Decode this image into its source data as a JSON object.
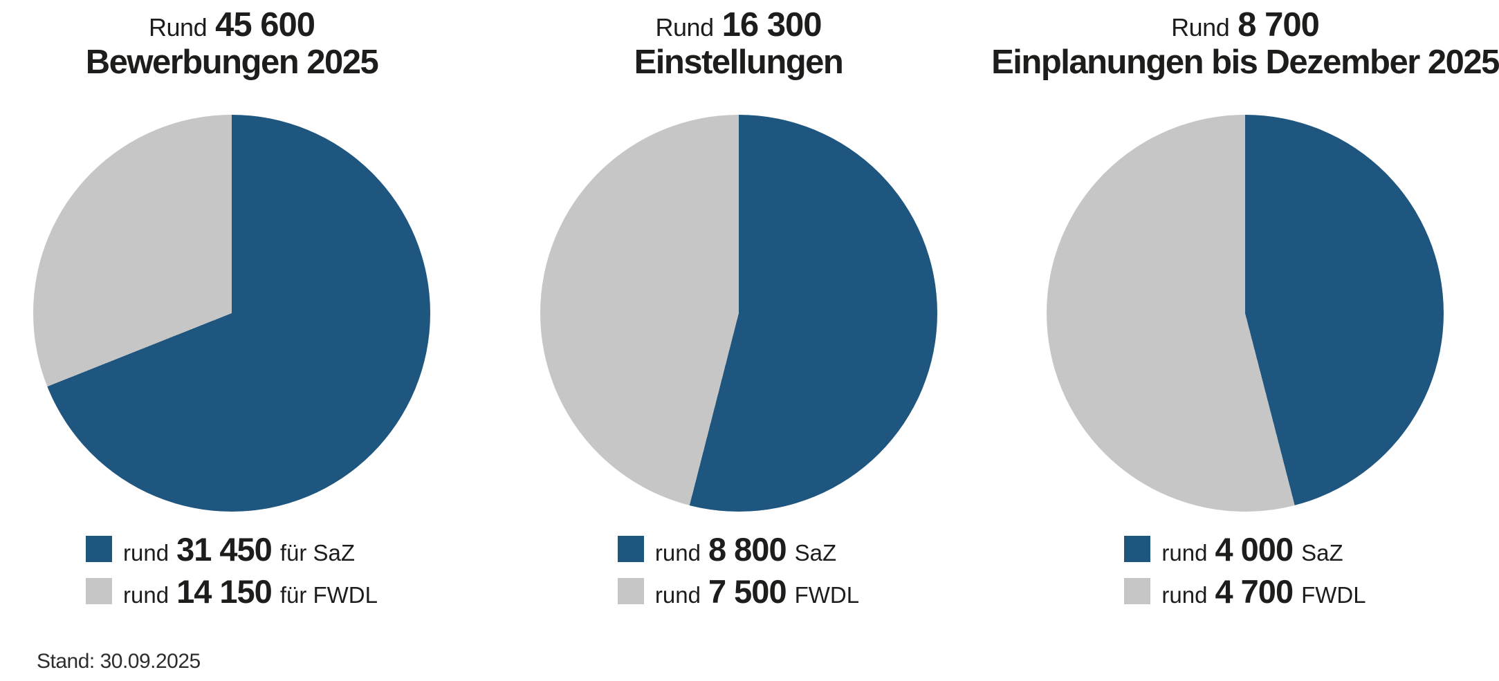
{
  "colors": {
    "saz_blue": "#1F567F",
    "fwdl_gray": "#C6C6C6",
    "text": "#1D1D1B"
  },
  "footer": {
    "stand": "Stand: 30.09.2025"
  },
  "chart_data": [
    {
      "type": "pie",
      "title_prefix": "Rund",
      "title_total": "45 600",
      "title_line2": "Bewerbungen 2025",
      "legend_position": "bottom",
      "start_angle_deg": 0,
      "direction": "clockwise",
      "slices": [
        {
          "name": "SaZ",
          "legend_prefix": "rund",
          "value_text": "31 450",
          "value": 31450,
          "label": "für SaZ",
          "color": "#1F567F"
        },
        {
          "name": "FWDL",
          "legend_prefix": "rund",
          "value_text": "14 150",
          "value": 14150,
          "label": "für FWDL",
          "color": "#C6C6C6"
        }
      ]
    },
    {
      "type": "pie",
      "title_prefix": "Rund",
      "title_total": "16 300",
      "title_line2": "Einstellungen",
      "legend_position": "bottom",
      "start_angle_deg": 0,
      "direction": "clockwise",
      "slices": [
        {
          "name": "SaZ",
          "legend_prefix": "rund",
          "value_text": "8 800",
          "value": 8800,
          "label": "SaZ",
          "color": "#1F567F"
        },
        {
          "name": "FWDL",
          "legend_prefix": "rund",
          "value_text": "7 500",
          "value": 7500,
          "label": "FWDL",
          "color": "#C6C6C6"
        }
      ]
    },
    {
      "type": "pie",
      "title_prefix": "Rund",
      "title_total": "8 700",
      "title_line2": "Einplanungen bis Dezember 2025",
      "legend_position": "bottom",
      "start_angle_deg": 0,
      "direction": "clockwise",
      "slices": [
        {
          "name": "SaZ",
          "legend_prefix": "rund",
          "value_text": "4 000",
          "value": 4000,
          "label": "SaZ",
          "color": "#1F567F"
        },
        {
          "name": "FWDL",
          "legend_prefix": "rund",
          "value_text": "4 700",
          "value": 4700,
          "label": "FWDL",
          "color": "#C6C6C6"
        }
      ]
    }
  ]
}
